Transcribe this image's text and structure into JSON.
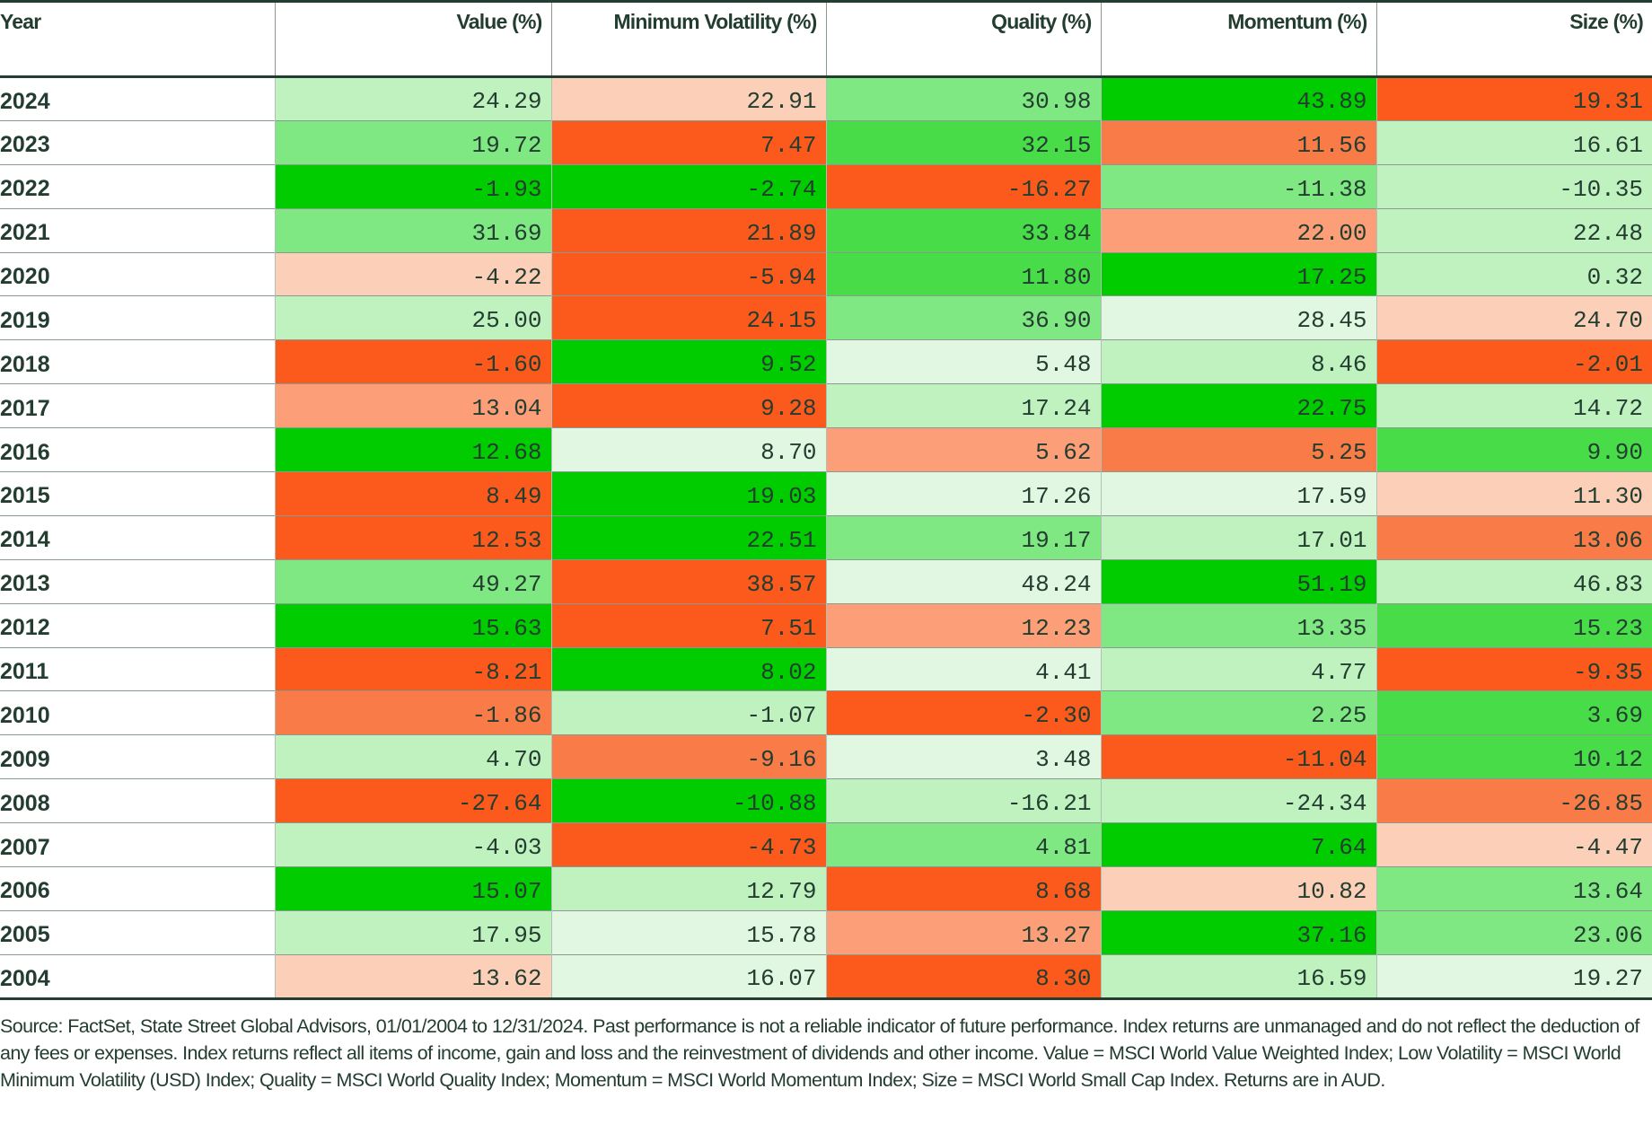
{
  "colors": {
    "G3": "#00cc00",
    "G2": "#48dd48",
    "G1": "#80e882",
    "G0": "#c0f2c0",
    "VP": "#e2f7e2",
    "O0": "#fccfb8",
    "O1": "#fc9e78",
    "O2": "#f97b47",
    "O3": "#fc5a1c",
    "text": "#233d30"
  },
  "table": {
    "headers": [
      "Year",
      "Value (%)",
      "Minimum Volatility (%)",
      "Quality (%)",
      "Momentum (%)",
      "Size (%)"
    ],
    "rows": [
      {
        "year": "2024",
        "cells": [
          {
            "v": "24.29",
            "c": "G0"
          },
          {
            "v": "22.91",
            "c": "O0"
          },
          {
            "v": "30.98",
            "c": "G1"
          },
          {
            "v": "43.89",
            "c": "G3"
          },
          {
            "v": "19.31",
            "c": "O3"
          }
        ]
      },
      {
        "year": "2023",
        "cells": [
          {
            "v": "19.72",
            "c": "G1"
          },
          {
            "v": "7.47",
            "c": "O3"
          },
          {
            "v": "32.15",
            "c": "G2"
          },
          {
            "v": "11.56",
            "c": "O2"
          },
          {
            "v": "16.61",
            "c": "G0"
          }
        ]
      },
      {
        "year": "2022",
        "cells": [
          {
            "v": "-1.93",
            "c": "G3"
          },
          {
            "v": "-2.74",
            "c": "G3"
          },
          {
            "v": "-16.27",
            "c": "O3"
          },
          {
            "v": "-11.38",
            "c": "G1"
          },
          {
            "v": "-10.35",
            "c": "G0"
          }
        ]
      },
      {
        "year": "2021",
        "cells": [
          {
            "v": "31.69",
            "c": "G1"
          },
          {
            "v": "21.89",
            "c": "O3"
          },
          {
            "v": "33.84",
            "c": "G2"
          },
          {
            "v": "22.00",
            "c": "O1"
          },
          {
            "v": "22.48",
            "c": "G0"
          }
        ]
      },
      {
        "year": "2020",
        "cells": [
          {
            "v": "-4.22",
            "c": "O0"
          },
          {
            "v": "-5.94",
            "c": "O3"
          },
          {
            "v": "11.80",
            "c": "G2"
          },
          {
            "v": "17.25",
            "c": "G3"
          },
          {
            "v": "0.32",
            "c": "G0"
          }
        ]
      },
      {
        "year": "2019",
        "cells": [
          {
            "v": "25.00",
            "c": "G0"
          },
          {
            "v": "24.15",
            "c": "O3"
          },
          {
            "v": "36.90",
            "c": "G1"
          },
          {
            "v": "28.45",
            "c": "VP"
          },
          {
            "v": "24.70",
            "c": "O0"
          }
        ]
      },
      {
        "year": "2018",
        "cells": [
          {
            "v": "-1.60",
            "c": "O3"
          },
          {
            "v": "9.52",
            "c": "G3"
          },
          {
            "v": "5.48",
            "c": "VP"
          },
          {
            "v": "8.46",
            "c": "G0"
          },
          {
            "v": "-2.01",
            "c": "O3"
          }
        ]
      },
      {
        "year": "2017",
        "cells": [
          {
            "v": "13.04",
            "c": "O1"
          },
          {
            "v": "9.28",
            "c": "O3"
          },
          {
            "v": "17.24",
            "c": "G0"
          },
          {
            "v": "22.75",
            "c": "G3"
          },
          {
            "v": "14.72",
            "c": "G0"
          }
        ]
      },
      {
        "year": "2016",
        "cells": [
          {
            "v": "12.68",
            "c": "G3"
          },
          {
            "v": "8.70",
            "c": "VP"
          },
          {
            "v": "5.62",
            "c": "O1"
          },
          {
            "v": "5.25",
            "c": "O2"
          },
          {
            "v": "9.90",
            "c": "G2"
          }
        ]
      },
      {
        "year": "2015",
        "cells": [
          {
            "v": "8.49",
            "c": "O3"
          },
          {
            "v": "19.03",
            "c": "G3"
          },
          {
            "v": "17.26",
            "c": "VP"
          },
          {
            "v": "17.59",
            "c": "VP"
          },
          {
            "v": "11.30",
            "c": "O0"
          }
        ]
      },
      {
        "year": "2014",
        "cells": [
          {
            "v": "12.53",
            "c": "O3"
          },
          {
            "v": "22.51",
            "c": "G3"
          },
          {
            "v": "19.17",
            "c": "G1"
          },
          {
            "v": "17.01",
            "c": "G0"
          },
          {
            "v": "13.06",
            "c": "O2"
          }
        ]
      },
      {
        "year": "2013",
        "cells": [
          {
            "v": "49.27",
            "c": "G1"
          },
          {
            "v": "38.57",
            "c": "O3"
          },
          {
            "v": "48.24",
            "c": "VP"
          },
          {
            "v": "51.19",
            "c": "G3"
          },
          {
            "v": "46.83",
            "c": "G0"
          }
        ]
      },
      {
        "year": "2012",
        "cells": [
          {
            "v": "15.63",
            "c": "G3"
          },
          {
            "v": "7.51",
            "c": "O3"
          },
          {
            "v": "12.23",
            "c": "O1"
          },
          {
            "v": "13.35",
            "c": "G1"
          },
          {
            "v": "15.23",
            "c": "G2"
          }
        ]
      },
      {
        "year": "2011",
        "cells": [
          {
            "v": "-8.21",
            "c": "O3"
          },
          {
            "v": "8.02",
            "c": "G3"
          },
          {
            "v": "4.41",
            "c": "VP"
          },
          {
            "v": "4.77",
            "c": "G0"
          },
          {
            "v": "-9.35",
            "c": "O3"
          }
        ]
      },
      {
        "year": "2010",
        "cells": [
          {
            "v": "-1.86",
            "c": "O2"
          },
          {
            "v": "-1.07",
            "c": "G0"
          },
          {
            "v": "-2.30",
            "c": "O3"
          },
          {
            "v": "2.25",
            "c": "G1"
          },
          {
            "v": "3.69",
            "c": "G2"
          }
        ]
      },
      {
        "year": "2009",
        "cells": [
          {
            "v": "4.70",
            "c": "G0"
          },
          {
            "v": "-9.16",
            "c": "O2"
          },
          {
            "v": "3.48",
            "c": "VP"
          },
          {
            "v": "-11.04",
            "c": "O3"
          },
          {
            "v": "10.12",
            "c": "G2"
          }
        ]
      },
      {
        "year": "2008",
        "cells": [
          {
            "v": "-27.64",
            "c": "O3"
          },
          {
            "v": "-10.88",
            "c": "G3"
          },
          {
            "v": "-16.21",
            "c": "G0"
          },
          {
            "v": "-24.34",
            "c": "G0"
          },
          {
            "v": "-26.85",
            "c": "O2"
          }
        ]
      },
      {
        "year": "2007",
        "cells": [
          {
            "v": "-4.03",
            "c": "G0"
          },
          {
            "v": "-4.73",
            "c": "O3"
          },
          {
            "v": "4.81",
            "c": "G1"
          },
          {
            "v": "7.64",
            "c": "G3"
          },
          {
            "v": "-4.47",
            "c": "O0"
          }
        ]
      },
      {
        "year": "2006",
        "cells": [
          {
            "v": "15.07",
            "c": "G3"
          },
          {
            "v": "12.79",
            "c": "G0"
          },
          {
            "v": "8.68",
            "c": "O3"
          },
          {
            "v": "10.82",
            "c": "O0"
          },
          {
            "v": "13.64",
            "c": "G1"
          }
        ]
      },
      {
        "year": "2005",
        "cells": [
          {
            "v": "17.95",
            "c": "G0"
          },
          {
            "v": "15.78",
            "c": "VP"
          },
          {
            "v": "13.27",
            "c": "O1"
          },
          {
            "v": "37.16",
            "c": "G3"
          },
          {
            "v": "23.06",
            "c": "G1"
          }
        ]
      },
      {
        "year": "2004",
        "cells": [
          {
            "v": "13.62",
            "c": "O0"
          },
          {
            "v": "16.07",
            "c": "VP"
          },
          {
            "v": "8.30",
            "c": "O3"
          },
          {
            "v": "16.59",
            "c": "G0"
          },
          {
            "v": "19.27",
            "c": "VP"
          }
        ]
      }
    ]
  },
  "footnote": "Source: FactSet, State Street Global Advisors, 01/01/2004 to 12/31/2024. Past performance is not a reliable indicator of future performance. Index returns are unmanaged and do not reflect the deduction of any fees or expenses. Index returns reflect all items of income, gain and loss and the reinvestment of dividends and other income. Value = MSCI World Value Weighted Index; Low Volatility = MSCI World Minimum Volatility (USD) Index; Quality = MSCI World Quality Index; Momentum = MSCI World Momentum Index; Size = MSCI World Small Cap Index. Returns are in AUD."
}
